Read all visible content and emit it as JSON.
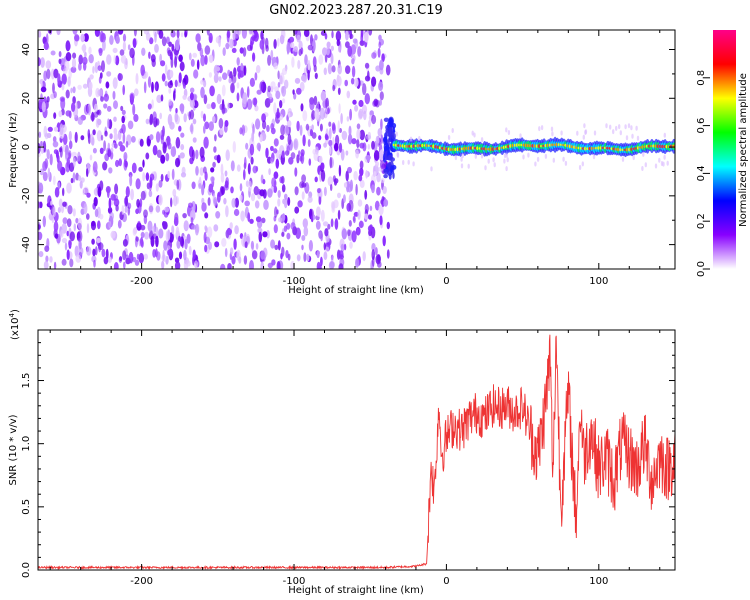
{
  "title": "GN02.2023.287.20.31.C19",
  "chart_data": [
    {
      "type": "heatmap",
      "name": "spectrogram",
      "xlabel": "Height of straight line (km)",
      "ylabel": "Frequency (Hz)",
      "xlim": [
        -268,
        150
      ],
      "ylim": [
        -50,
        48
      ],
      "xticks": [
        -200,
        -100,
        0,
        100
      ],
      "yticks": [
        -40,
        -20,
        0,
        20,
        40
      ],
      "noise_region_x": [
        -268,
        -38
      ],
      "signal_onset_x": -38,
      "signal_band_hz": [
        -3,
        3
      ],
      "colorbar": {
        "label": "Normalized spectral amplitude",
        "ticks": [
          0.0,
          0.2,
          0.4,
          0.6,
          0.8
        ],
        "range": [
          0,
          1
        ],
        "colors": [
          "#ffffff",
          "#8800ff",
          "#0000ff",
          "#00ffff",
          "#00ff00",
          "#ffff00",
          "#ff0000",
          "#ff0088"
        ]
      }
    },
    {
      "type": "line",
      "name": "snr",
      "xlabel": "Height of straight line (km)",
      "ylabel": "SNR (10 * v/v)",
      "yscale_label": "(x10",
      "yscale_exp": "4",
      "xlim": [
        -268,
        150
      ],
      "ylim": [
        0,
        1.9
      ],
      "xticks": [
        -200,
        -100,
        0,
        100
      ],
      "yticks": [
        0.0,
        0.5,
        1.0,
        1.5
      ],
      "color": "#ee3333",
      "points": [
        [
          -268,
          0.02
        ],
        [
          -200,
          0.02
        ],
        [
          -100,
          0.02
        ],
        [
          -40,
          0.02
        ],
        [
          -20,
          0.03
        ],
        [
          -13,
          0.05
        ],
        [
          -12,
          0.3
        ],
        [
          -10,
          0.85
        ],
        [
          -8,
          0.6
        ],
        [
          -5,
          1.3
        ],
        [
          -3,
          0.9
        ],
        [
          0,
          1.05
        ],
        [
          5,
          1.15
        ],
        [
          10,
          1.1
        ],
        [
          15,
          1.2
        ],
        [
          20,
          1.25
        ],
        [
          25,
          1.2
        ],
        [
          30,
          1.3
        ],
        [
          35,
          1.28
        ],
        [
          40,
          1.3
        ],
        [
          45,
          1.25
        ],
        [
          50,
          1.3
        ],
        [
          55,
          1.1
        ],
        [
          60,
          0.9
        ],
        [
          65,
          1.3
        ],
        [
          68,
          1.7
        ],
        [
          70,
          0.7
        ],
        [
          72,
          1.9
        ],
        [
          75,
          0.5
        ],
        [
          80,
          1.4
        ],
        [
          85,
          0.4
        ],
        [
          88,
          1.3
        ],
        [
          90,
          0.9
        ],
        [
          95,
          1.1
        ],
        [
          100,
          0.8
        ],
        [
          105,
          0.9
        ],
        [
          110,
          0.7
        ],
        [
          115,
          1.0
        ],
        [
          120,
          0.9
        ],
        [
          125,
          0.8
        ],
        [
          130,
          1.0
        ],
        [
          135,
          0.7
        ],
        [
          140,
          0.9
        ],
        [
          145,
          0.8
        ],
        [
          150,
          0.9
        ]
      ]
    }
  ]
}
